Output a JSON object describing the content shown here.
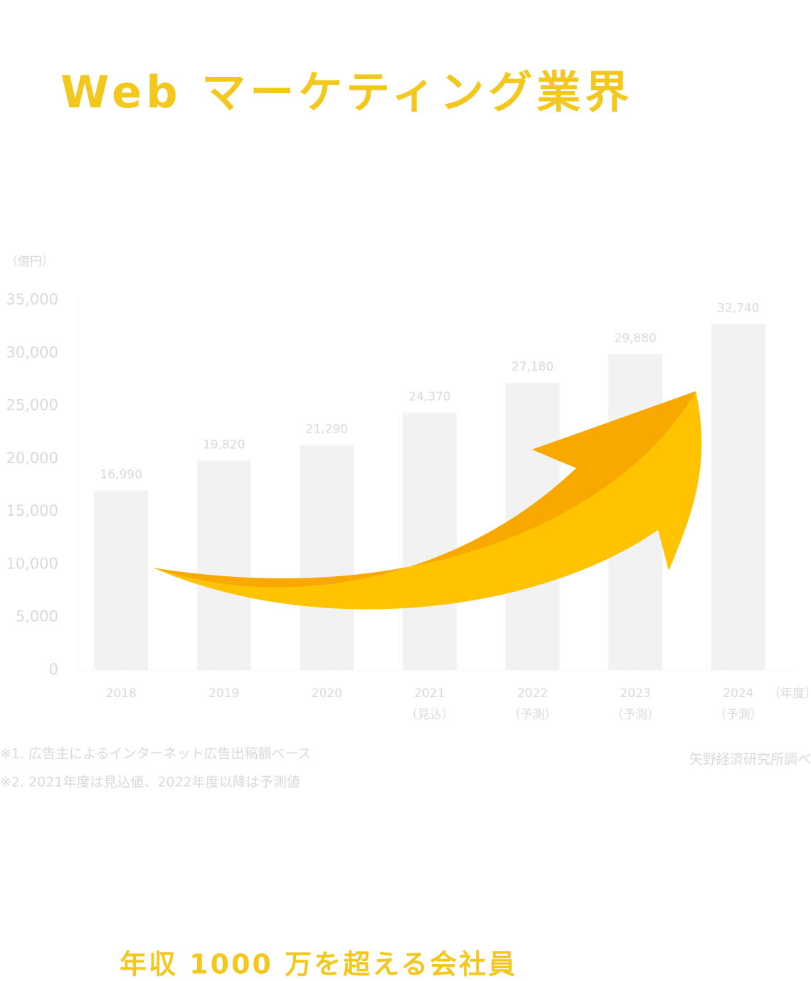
{
  "title": "Web マーケティング業界",
  "chart_data": {
    "type": "bar",
    "y_unit": "（億円）",
    "x_unit": "（年度）",
    "categories": [
      "2018",
      "2019",
      "2020",
      "2021",
      "2022",
      "2023",
      "2024"
    ],
    "category_notes": [
      null,
      null,
      null,
      "（見込）",
      "（予測）",
      "（予測）",
      "（予測）"
    ],
    "values": [
      16990,
      19820,
      21290,
      24370,
      27180,
      29880,
      32740
    ],
    "value_labels": [
      "16,990",
      "19,820",
      "21,290",
      "24,370",
      "27,180",
      "29,880",
      "32,740"
    ],
    "color": "#f2f2f2",
    "ylim": [
      0,
      35000
    ],
    "yticks": [
      0,
      {
        "value": 5000,
        "label": "5,000"
      },
      {
        "value": 10000,
        "label": "10,000"
      },
      {
        "value": 15000,
        "label": "15,000"
      },
      {
        "value": 20000,
        "label": "20,000"
      },
      {
        "value": 25000,
        "label": "25,000"
      },
      {
        "value": 30000,
        "label": "30,000"
      },
      {
        "value": 35000,
        "label": "35,000"
      }
    ],
    "grid": false,
    "notes": [
      "※1. 広告主によるインターネット広告出稿額ベース",
      "※2. 2021年度は見込値、2022年度以降は予測値"
    ],
    "source": "矢野経済研究所調べ"
  },
  "footer": "年収 1000 万を超える会社員"
}
